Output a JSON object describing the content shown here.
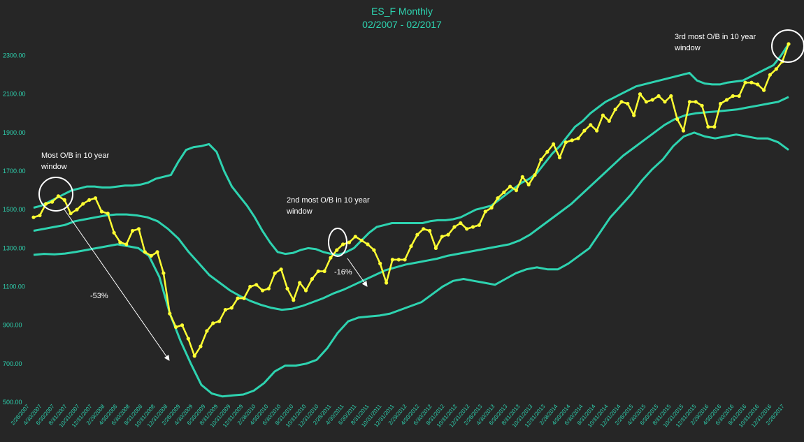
{
  "chart_data": {
    "type": "line",
    "title": "ES_F Monthly",
    "subtitle": "02/2007 - 02/2017",
    "xlabel": "",
    "ylabel": "",
    "ylim": [
      500,
      2400
    ],
    "grid": false,
    "y_ticks": [
      "500.00",
      "700.00",
      "900.00",
      "1100.00",
      "1300.00",
      "1500.00",
      "1700.00",
      "1900.00",
      "2100.00",
      "2300.00"
    ],
    "x_tick_labels": [
      "2/28/2007",
      "4/30/2007",
      "6/30/2007",
      "8/31/2007",
      "10/31/2007",
      "12/31/2007",
      "2/29/2008",
      "4/30/2008",
      "6/30/2008",
      "8/31/2008",
      "10/31/2008",
      "12/31/2008",
      "2/28/2009",
      "4/30/2009",
      "6/30/2009",
      "8/31/2009",
      "10/31/2009",
      "12/31/2009",
      "2/28/2010",
      "4/30/2010",
      "6/30/2010",
      "8/31/2010",
      "10/31/2010",
      "12/31/2010",
      "2/28/2011",
      "4/30/2011",
      "6/30/2011",
      "8/31/2011",
      "10/31/2011",
      "12/31/2011",
      "2/29/2012",
      "4/30/2012",
      "6/30/2012",
      "8/31/2012",
      "10/31/2012",
      "12/31/2012",
      "2/28/2013",
      "4/30/2013",
      "6/30/2013",
      "8/31/2013",
      "10/31/2013",
      "12/31/2013",
      "2/28/2014",
      "4/30/2014",
      "6/30/2014",
      "8/31/2014",
      "10/31/2014",
      "12/31/2014",
      "2/28/2015",
      "4/30/2015",
      "6/30/2015",
      "8/31/2015",
      "10/31/2015",
      "12/31/2015",
      "2/29/2016",
      "4/30/2016",
      "6/30/2016",
      "8/31/2016",
      "10/31/2016",
      "12/31/2016",
      "2/28/2017"
    ],
    "series": [
      {
        "role": "price",
        "color": "#ffff33",
        "markers": true,
        "values": [
          1460,
          1470,
          1530,
          1540,
          1570,
          1550,
          1480,
          1500,
          1530,
          1550,
          1560,
          1490,
          1480,
          1380,
          1330,
          1320,
          1390,
          1400,
          1280,
          1260,
          1280,
          1170,
          960,
          890,
          900,
          830,
          740,
          790,
          870,
          910,
          920,
          980,
          990,
          1040,
          1040,
          1100,
          1110,
          1080,
          1090,
          1170,
          1190,
          1090,
          1030,
          1120,
          1080,
          1140,
          1180,
          1180,
          1250,
          1290,
          1320,
          1330,
          1360,
          1340,
          1320,
          1290,
          1220,
          1120,
          1240,
          1240,
          1240,
          1310,
          1370,
          1400,
          1390,
          1300,
          1360,
          1370,
          1410,
          1430,
          1400,
          1410,
          1420,
          1490,
          1510,
          1560,
          1590,
          1620,
          1600,
          1670,
          1630,
          1680,
          1760,
          1800,
          1840,
          1770,
          1850,
          1860,
          1870,
          1910,
          1940,
          1910,
          1990,
          1960,
          2020,
          2060,
          2050,
          1990,
          2100,
          2060,
          2070,
          2090,
          2060,
          2090,
          1970,
          1910,
          2060,
          2060,
          2040,
          1930,
          1930,
          2050,
          2070,
          2090,
          2090,
          2160,
          2160,
          2150,
          2120,
          2200,
          2230,
          2270,
          2360
        ]
      },
      {
        "role": "upper band",
        "color": "#2ed3b0",
        "markers": false,
        "values": [
          1510,
          1520,
          1540,
          1560,
          1580,
          1600,
          1610,
          1620,
          1620,
          1615,
          1615,
          1620,
          1625,
          1625,
          1630,
          1640,
          1660,
          1670,
          1680,
          1750,
          1810,
          1825,
          1830,
          1840,
          1800,
          1700,
          1620,
          1570,
          1520,
          1460,
          1390,
          1330,
          1280,
          1270,
          1275,
          1290,
          1300,
          1295,
          1280,
          1270,
          1265,
          1280,
          1300,
          1340,
          1380,
          1410,
          1420,
          1430,
          1430,
          1430,
          1430,
          1430,
          1440,
          1445,
          1445,
          1450,
          1460,
          1480,
          1500,
          1510,
          1520,
          1550,
          1580,
          1610,
          1640,
          1660,
          1690,
          1740,
          1790,
          1830,
          1880,
          1930,
          1960,
          2000,
          2030,
          2060,
          2080,
          2100,
          2120,
          2140,
          2150,
          2160,
          2170,
          2180,
          2190,
          2200,
          2210,
          2170,
          2155,
          2150,
          2150,
          2160,
          2165,
          2170,
          2190,
          2210,
          2230,
          2250,
          2300,
          2360
        ]
      },
      {
        "role": "middle band",
        "color": "#2ed3b0",
        "markers": false,
        "values": [
          1390,
          1400,
          1410,
          1420,
          1440,
          1450,
          1460,
          1470,
          1475,
          1475,
          1470,
          1460,
          1440,
          1400,
          1350,
          1280,
          1220,
          1160,
          1120,
          1080,
          1050,
          1025,
          1005,
          990,
          980,
          985,
          1000,
          1020,
          1040,
          1065,
          1085,
          1110,
          1135,
          1160,
          1185,
          1200,
          1215,
          1225,
          1235,
          1245,
          1260,
          1270,
          1280,
          1290,
          1300,
          1310,
          1320,
          1340,
          1370,
          1410,
          1450,
          1490,
          1530,
          1580,
          1630,
          1680,
          1730,
          1780,
          1820,
          1860,
          1900,
          1940,
          1970,
          1990,
          2000,
          2005,
          2010,
          2015,
          2020,
          2030,
          2040,
          2050,
          2060,
          2085
        ]
      },
      {
        "role": "lower band",
        "color": "#2ed3b0",
        "markers": false,
        "values": [
          1265,
          1270,
          1268,
          1272,
          1280,
          1290,
          1300,
          1310,
          1320,
          1310,
          1300,
          1260,
          1150,
          960,
          820,
          700,
          590,
          545,
          530,
          535,
          540,
          560,
          600,
          660,
          690,
          690,
          700,
          720,
          780,
          860,
          920,
          940,
          945,
          950,
          960,
          980,
          1000,
          1020,
          1060,
          1100,
          1130,
          1140,
          1130,
          1120,
          1110,
          1140,
          1170,
          1190,
          1200,
          1190,
          1190,
          1220,
          1260,
          1300,
          1380,
          1460,
          1520,
          1580,
          1650,
          1710,
          1760,
          1830,
          1880,
          1900,
          1880,
          1870,
          1880,
          1890,
          1880,
          1870,
          1870,
          1850,
          1810
        ]
      }
    ],
    "annotations": [
      {
        "text": "Most O/B in 10 year window"
      },
      {
        "text": "2nd most O/B in 10 year window"
      },
      {
        "text": "3rd most O/B in 10 year window"
      },
      {
        "text": "-53%"
      },
      {
        "text": "-16%"
      }
    ]
  }
}
